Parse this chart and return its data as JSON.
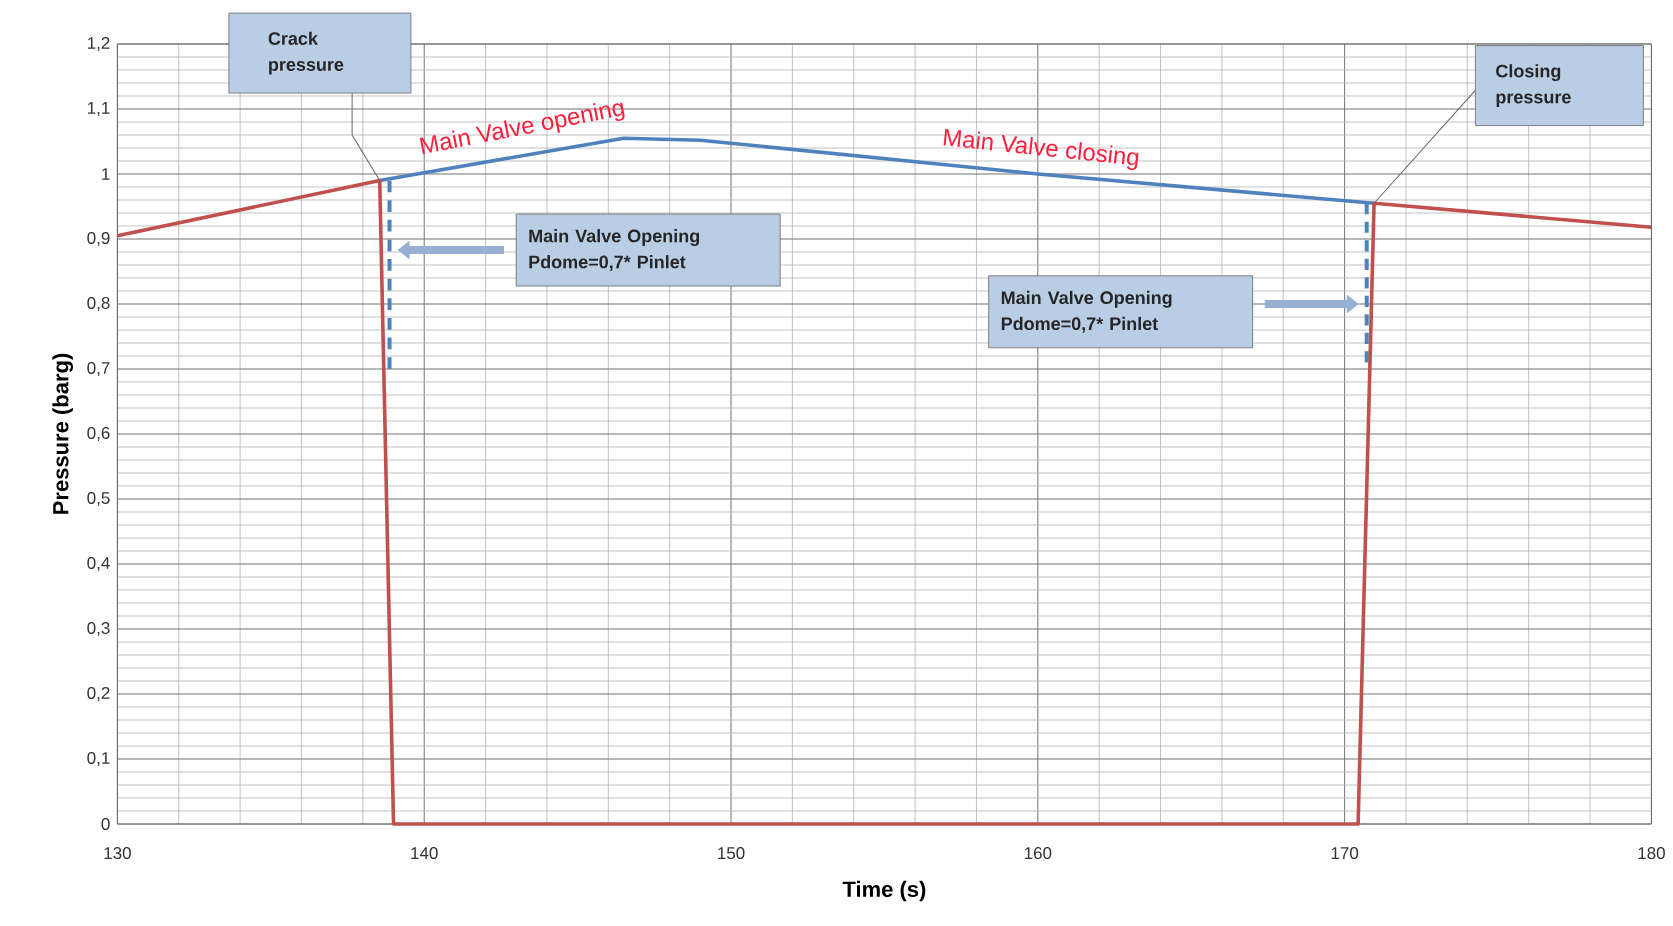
{
  "chart_data": {
    "type": "line",
    "xlabel": "Time (s)",
    "ylabel": "Pressure (barg)",
    "xlim": [
      130,
      180
    ],
    "ylim": [
      0,
      1.2
    ],
    "xticks": [
      130,
      140,
      150,
      160,
      170,
      180
    ],
    "yticks": [
      {
        "value": 0,
        "label": "0"
      },
      {
        "value": 0.1,
        "label": "0,1"
      },
      {
        "value": 0.2,
        "label": "0,2"
      },
      {
        "value": 0.3,
        "label": "0,3"
      },
      {
        "value": 0.4,
        "label": "0,4"
      },
      {
        "value": 0.5,
        "label": "0,5"
      },
      {
        "value": 0.6,
        "label": "0,6"
      },
      {
        "value": 0.7,
        "label": "0,7"
      },
      {
        "value": 0.8,
        "label": "0,8"
      },
      {
        "value": 0.9,
        "label": "0,9"
      },
      {
        "value": 1,
        "label": "1"
      },
      {
        "value": 1.1,
        "label": "1,1"
      },
      {
        "value": 1.2,
        "label": "1,2"
      }
    ],
    "grid": true,
    "marker": "none",
    "series": [
      {
        "color": "#4f81bd",
        "x": [
          138.55,
          146.5,
          149,
          160,
          170.96
        ],
        "values": [
          0.99,
          1.055,
          1.052,
          1.0,
          0.955
        ]
      },
      {
        "color": "#4f81bd",
        "line_style": "dashed",
        "x": [
          138.87,
          138.87
        ],
        "values": [
          0.99,
          0.7
        ]
      },
      {
        "color": "#4f81bd",
        "line_style": "dashed",
        "x": [
          170.72,
          170.72
        ],
        "values": [
          0.955,
          0.71
        ]
      },
      {
        "color": "#c0504d",
        "x": [
          130,
          138.55,
          139.0,
          170.44,
          170.96,
          180
        ],
        "values": [
          0.905,
          0.99,
          0,
          0,
          0.955,
          0.918
        ]
      }
    ],
    "annotations": [
      {
        "text": "Crack pressure",
        "x": 138.55,
        "y": 0.99
      },
      {
        "text": "Closing pressure",
        "x": 170.96,
        "y": 0.955
      },
      {
        "text": "Main Valve opening",
        "x": 143.2,
        "y": 1.035
      },
      {
        "text": "Main Valve closing",
        "x": 160.1,
        "y": 1.0
      },
      "Main Valve Opening Pdome=0,7* Pinlet",
      "Main Valve Opening Pdome=0,7* Pinlet"
    ]
  }
}
